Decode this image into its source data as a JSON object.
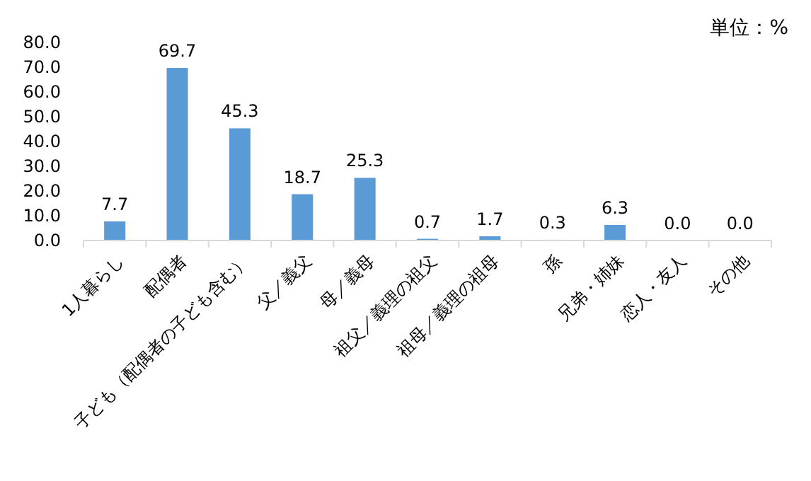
{
  "chart_data": {
    "type": "bar",
    "annotations": [
      "単位：%"
    ],
    "categories": [
      "1人暮らし",
      "配偶者",
      "子ども（配偶者の子ども含む）",
      "父／義父",
      "母／義母",
      "祖父／義理の祖父",
      "祖母／義理の祖母",
      "孫",
      "兄弟・姉妹",
      "恋人・友人",
      "その他"
    ],
    "values": [
      7.7,
      69.7,
      45.3,
      18.7,
      25.3,
      0.7,
      1.7,
      0.3,
      6.3,
      0.0,
      0.0
    ],
    "color": "#5b9bd5",
    "ylim": [
      0,
      80
    ],
    "yticks": [
      {
        "value": 0,
        "label": "0.0"
      },
      {
        "value": 10,
        "label": "10.0"
      },
      {
        "value": 20,
        "label": "20.0"
      },
      {
        "value": 30,
        "label": "30.0"
      },
      {
        "value": 40,
        "label": "40.0"
      },
      {
        "value": 50,
        "label": "50.0"
      },
      {
        "value": 60,
        "label": "60.0"
      },
      {
        "value": 70,
        "label": "70.0"
      },
      {
        "value": 80,
        "label": "80.0"
      }
    ],
    "value_labels": [
      "7.7",
      "69.7",
      "45.3",
      "18.7",
      "25.3",
      "0.7",
      "1.7",
      "0.3",
      "6.3",
      "0.0",
      "0.0"
    ],
    "grid": false
  }
}
